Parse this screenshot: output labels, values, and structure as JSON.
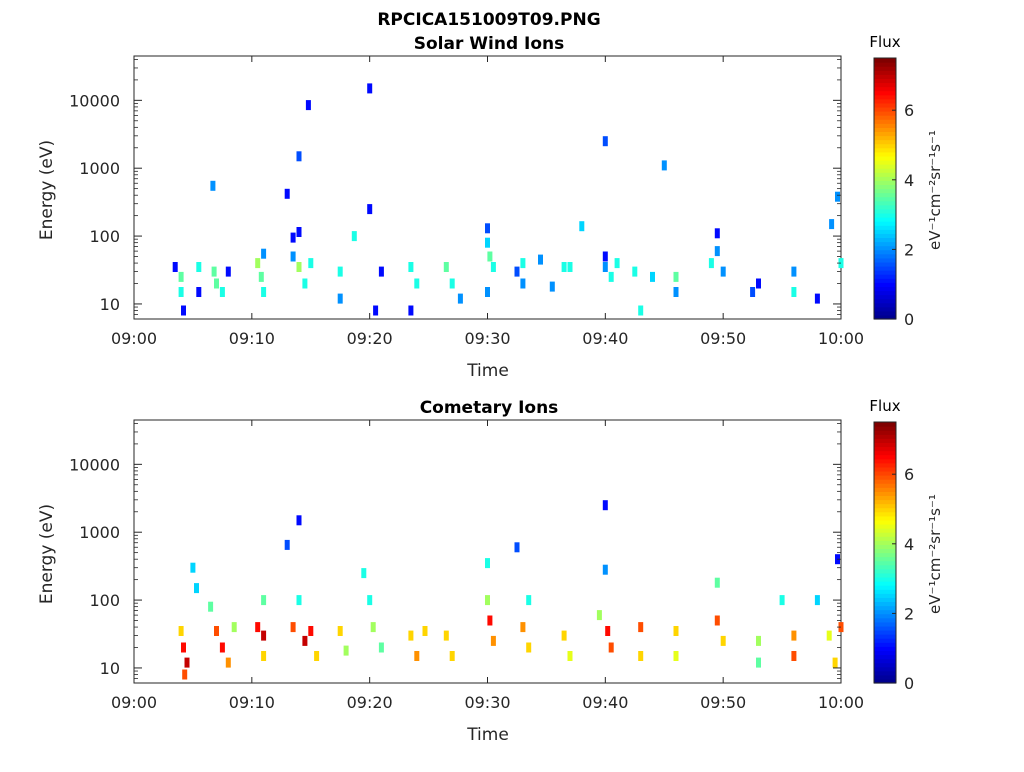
{
  "title": "RPCICA151009T09.PNG",
  "colormap": [
    "#00008f",
    "#0000ff",
    "#0080ff",
    "#00ffff",
    "#80ff80",
    "#ffff00",
    "#ff8000",
    "#ff0000",
    "#800000"
  ],
  "chart_data": [
    {
      "type": "heatmap",
      "title": "Solar Wind Ions",
      "xlabel": "Time",
      "ylabel": "Energy (eV)",
      "xlim": [
        "09:00",
        "10:00"
      ],
      "xticks": [
        "09:00",
        "09:10",
        "09:20",
        "09:30",
        "09:40",
        "09:50",
        "10:00"
      ],
      "yscale": "log",
      "ylim": [
        6,
        45000
      ],
      "yticks": [
        "10",
        "100",
        "1000",
        "10000"
      ],
      "colorbar": {
        "label": "Flux",
        "unit_label": "eV⁻¹cm⁻²sr⁻¹s⁻¹",
        "range": [
          0,
          7.5
        ],
        "ticks": [
          "0",
          "2",
          "4",
          "6"
        ]
      },
      "points": [
        {
          "t": "09:03.5",
          "e": 35,
          "v": 1
        },
        {
          "t": "09:04",
          "e": 25,
          "v": 3.5
        },
        {
          "t": "09:04",
          "e": 15,
          "v": 3
        },
        {
          "t": "09:04.2",
          "e": 8,
          "v": 1
        },
        {
          "t": "09:05.5",
          "e": 35,
          "v": 3
        },
        {
          "t": "09:05.5",
          "e": 15,
          "v": 1
        },
        {
          "t": "09:06.8",
          "e": 30,
          "v": 3.5
        },
        {
          "t": "09:07",
          "e": 20,
          "v": 3.5
        },
        {
          "t": "09:07.5",
          "e": 15,
          "v": 3
        },
        {
          "t": "09:08",
          "e": 30,
          "v": 1
        },
        {
          "t": "09:06.7",
          "e": 550,
          "v": 2
        },
        {
          "t": "09:10.5",
          "e": 40,
          "v": 4
        },
        {
          "t": "09:10.8",
          "e": 25,
          "v": 3.5
        },
        {
          "t": "09:11",
          "e": 55,
          "v": 2
        },
        {
          "t": "09:11",
          "e": 15,
          "v": 3
        },
        {
          "t": "09:13.5",
          "e": 50,
          "v": 2
        },
        {
          "t": "09:14",
          "e": 35,
          "v": 4
        },
        {
          "t": "09:14.5",
          "e": 20,
          "v": 3
        },
        {
          "t": "09:15",
          "e": 40,
          "v": 3
        },
        {
          "t": "09:13",
          "e": 420,
          "v": 1
        },
        {
          "t": "09:14",
          "e": 1500,
          "v": 1.5
        },
        {
          "t": "09:14.8",
          "e": 8500,
          "v": 1
        },
        {
          "t": "09:13.5",
          "e": 95,
          "v": 1
        },
        {
          "t": "09:14",
          "e": 115,
          "v": 1
        },
        {
          "t": "09:17.5",
          "e": 30,
          "v": 3
        },
        {
          "t": "09:17.5",
          "e": 12,
          "v": 2
        },
        {
          "t": "09:18.7",
          "e": 100,
          "v": 3
        },
        {
          "t": "09:20",
          "e": 15000,
          "v": 1
        },
        {
          "t": "09:20",
          "e": 250,
          "v": 1
        },
        {
          "t": "09:20.5",
          "e": 8,
          "v": 1
        },
        {
          "t": "09:21",
          "e": 30,
          "v": 1
        },
        {
          "t": "09:23.5",
          "e": 35,
          "v": 3
        },
        {
          "t": "09:24",
          "e": 20,
          "v": 3
        },
        {
          "t": "09:23.5",
          "e": 8,
          "v": 1
        },
        {
          "t": "09:26.5",
          "e": 35,
          "v": 3.5
        },
        {
          "t": "09:27",
          "e": 20,
          "v": 3
        },
        {
          "t": "09:27.7",
          "e": 12,
          "v": 2
        },
        {
          "t": "09:30",
          "e": 130,
          "v": 1.5
        },
        {
          "t": "09:30",
          "e": 80,
          "v": 2.5
        },
        {
          "t": "09:30.2",
          "e": 50,
          "v": 3.5
        },
        {
          "t": "09:30.5",
          "e": 35,
          "v": 3
        },
        {
          "t": "09:30",
          "e": 15,
          "v": 2
        },
        {
          "t": "09:32.5",
          "e": 30,
          "v": 1.5
        },
        {
          "t": "09:33",
          "e": 20,
          "v": 2
        },
        {
          "t": "09:33",
          "e": 40,
          "v": 3
        },
        {
          "t": "09:34.5",
          "e": 45,
          "v": 2
        },
        {
          "t": "09:35.5",
          "e": 18,
          "v": 2
        },
        {
          "t": "09:36.5",
          "e": 35,
          "v": 3
        },
        {
          "t": "09:37",
          "e": 35,
          "v": 3
        },
        {
          "t": "09:38",
          "e": 140,
          "v": 2.5
        },
        {
          "t": "09:40",
          "e": 2500,
          "v": 1.5
        },
        {
          "t": "09:40",
          "e": 50,
          "v": 1
        },
        {
          "t": "09:40",
          "e": 35,
          "v": 2
        },
        {
          "t": "09:40.5",
          "e": 25,
          "v": 3
        },
        {
          "t": "09:41",
          "e": 40,
          "v": 3
        },
        {
          "t": "09:42.5",
          "e": 30,
          "v": 3
        },
        {
          "t": "09:43",
          "e": 8,
          "v": 3
        },
        {
          "t": "09:44",
          "e": 25,
          "v": 2.5
        },
        {
          "t": "09:45",
          "e": 1100,
          "v": 2
        },
        {
          "t": "09:46",
          "e": 25,
          "v": 3.5
        },
        {
          "t": "09:46",
          "e": 15,
          "v": 2
        },
        {
          "t": "09:49",
          "e": 40,
          "v": 3
        },
        {
          "t": "09:49.5",
          "e": 60,
          "v": 2
        },
        {
          "t": "09:50",
          "e": 30,
          "v": 2
        },
        {
          "t": "09:49.5",
          "e": 110,
          "v": 1
        },
        {
          "t": "09:52.5",
          "e": 15,
          "v": 1.5
        },
        {
          "t": "09:53",
          "e": 20,
          "v": 1
        },
        {
          "t": "09:56",
          "e": 30,
          "v": 2
        },
        {
          "t": "09:56",
          "e": 15,
          "v": 3
        },
        {
          "t": "09:58",
          "e": 12,
          "v": 1
        },
        {
          "t": "09:59.2",
          "e": 150,
          "v": 2
        },
        {
          "t": "09:59.7",
          "e": 380,
          "v": 2
        },
        {
          "t": "10:00",
          "e": 40,
          "v": 3
        }
      ]
    },
    {
      "type": "heatmap",
      "title": "Cometary Ions",
      "xlabel": "Time",
      "ylabel": "Energy (eV)",
      "xlim": [
        "09:00",
        "10:00"
      ],
      "xticks": [
        "09:00",
        "09:10",
        "09:20",
        "09:30",
        "09:40",
        "09:50",
        "10:00"
      ],
      "yscale": "log",
      "ylim": [
        6,
        45000
      ],
      "yticks": [
        "10",
        "100",
        "1000",
        "10000"
      ],
      "colorbar": {
        "label": "Flux",
        "unit_label": "eV⁻¹cm⁻²sr⁻¹s⁻¹",
        "range": [
          0,
          7.5
        ],
        "ticks": [
          "0",
          "2",
          "4",
          "6"
        ]
      },
      "points": [
        {
          "t": "09:04",
          "e": 35,
          "v": 5
        },
        {
          "t": "09:04.2",
          "e": 20,
          "v": 6.5
        },
        {
          "t": "09:04.5",
          "e": 12,
          "v": 7
        },
        {
          "t": "09:04.3",
          "e": 8,
          "v": 6
        },
        {
          "t": "09:05",
          "e": 300,
          "v": 2.5
        },
        {
          "t": "09:05.3",
          "e": 150,
          "v": 2.5
        },
        {
          "t": "09:06.5",
          "e": 80,
          "v": 3.5
        },
        {
          "t": "09:07",
          "e": 35,
          "v": 6
        },
        {
          "t": "09:07.5",
          "e": 20,
          "v": 6.5
        },
        {
          "t": "09:08",
          "e": 12,
          "v": 5.5
        },
        {
          "t": "09:08.5",
          "e": 40,
          "v": 4
        },
        {
          "t": "09:10.5",
          "e": 40,
          "v": 6.5
        },
        {
          "t": "09:11",
          "e": 30,
          "v": 7
        },
        {
          "t": "09:11",
          "e": 15,
          "v": 5
        },
        {
          "t": "09:11",
          "e": 100,
          "v": 3.5
        },
        {
          "t": "09:13",
          "e": 650,
          "v": 1.5
        },
        {
          "t": "09:13.5",
          "e": 40,
          "v": 6
        },
        {
          "t": "09:14",
          "e": 1500,
          "v": 1
        },
        {
          "t": "09:14.5",
          "e": 25,
          "v": 7
        },
        {
          "t": "09:15",
          "e": 35,
          "v": 6.5
        },
        {
          "t": "09:15.5",
          "e": 15,
          "v": 5
        },
        {
          "t": "09:14",
          "e": 100,
          "v": 3
        },
        {
          "t": "09:17.5",
          "e": 35,
          "v": 5
        },
        {
          "t": "09:18",
          "e": 18,
          "v": 4
        },
        {
          "t": "09:19.5",
          "e": 250,
          "v": 3
        },
        {
          "t": "09:20",
          "e": 100,
          "v": 3
        },
        {
          "t": "09:20.3",
          "e": 40,
          "v": 4
        },
        {
          "t": "09:21",
          "e": 20,
          "v": 3.5
        },
        {
          "t": "09:23.5",
          "e": 30,
          "v": 5
        },
        {
          "t": "09:24",
          "e": 15,
          "v": 5.5
        },
        {
          "t": "09:24.7",
          "e": 35,
          "v": 5
        },
        {
          "t": "09:26.5",
          "e": 30,
          "v": 5
        },
        {
          "t": "09:27",
          "e": 15,
          "v": 5
        },
        {
          "t": "09:30",
          "e": 350,
          "v": 3
        },
        {
          "t": "09:30",
          "e": 100,
          "v": 4
        },
        {
          "t": "09:30.2",
          "e": 50,
          "v": 6.5
        },
        {
          "t": "09:30.5",
          "e": 25,
          "v": 5.5
        },
        {
          "t": "09:32.5",
          "e": 600,
          "v": 1.5
        },
        {
          "t": "09:33",
          "e": 40,
          "v": 5.5
        },
        {
          "t": "09:33.5",
          "e": 20,
          "v": 5
        },
        {
          "t": "09:33.5",
          "e": 100,
          "v": 3
        },
        {
          "t": "09:36.5",
          "e": 30,
          "v": 5
        },
        {
          "t": "09:37",
          "e": 15,
          "v": 4.5
        },
        {
          "t": "09:39.5",
          "e": 60,
          "v": 4
        },
        {
          "t": "09:40",
          "e": 2500,
          "v": 1
        },
        {
          "t": "09:40",
          "e": 280,
          "v": 2
        },
        {
          "t": "09:40.2",
          "e": 35,
          "v": 6.5
        },
        {
          "t": "09:40.5",
          "e": 20,
          "v": 6
        },
        {
          "t": "09:43",
          "e": 40,
          "v": 6
        },
        {
          "t": "09:43",
          "e": 15,
          "v": 5
        },
        {
          "t": "09:46",
          "e": 35,
          "v": 5
        },
        {
          "t": "09:46",
          "e": 15,
          "v": 4.5
        },
        {
          "t": "09:49.5",
          "e": 180,
          "v": 3.5
        },
        {
          "t": "09:49.5",
          "e": 50,
          "v": 6
        },
        {
          "t": "09:50",
          "e": 25,
          "v": 5
        },
        {
          "t": "09:53",
          "e": 25,
          "v": 4
        },
        {
          "t": "09:53",
          "e": 12,
          "v": 3.5
        },
        {
          "t": "09:55",
          "e": 100,
          "v": 3
        },
        {
          "t": "09:56",
          "e": 30,
          "v": 5.5
        },
        {
          "t": "09:56",
          "e": 15,
          "v": 6
        },
        {
          "t": "09:58",
          "e": 100,
          "v": 2.5
        },
        {
          "t": "09:59",
          "e": 30,
          "v": 4.5
        },
        {
          "t": "09:59.5",
          "e": 12,
          "v": 5
        },
        {
          "t": "09:59.7",
          "e": 400,
          "v": 1
        },
        {
          "t": "10:00",
          "e": 40,
          "v": 6
        }
      ]
    }
  ]
}
